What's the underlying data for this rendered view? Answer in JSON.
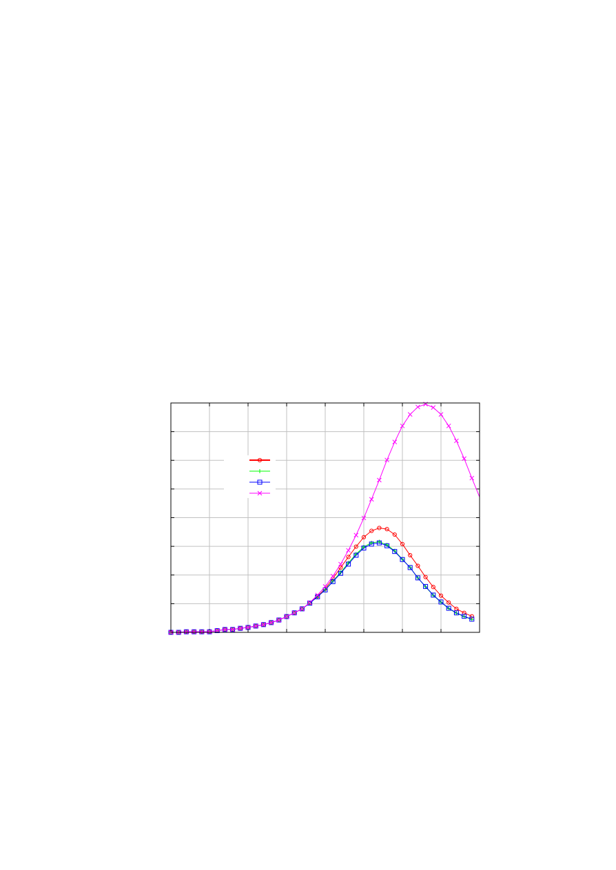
{
  "chart_data": {
    "type": "line",
    "title": "",
    "xlabel": "",
    "ylabel": "",
    "xlim": [
      0,
      8
    ],
    "ylim": [
      0,
      8
    ],
    "grid": true,
    "tick_labels_shown": false,
    "legend_placement": "upper-left-center",
    "x": [
      0,
      0.2,
      0.4,
      0.6,
      0.8,
      1.0,
      1.2,
      1.4,
      1.6,
      1.8,
      2.0,
      2.2,
      2.4,
      2.6,
      2.8,
      3.0,
      3.2,
      3.4,
      3.6,
      3.8,
      4.0,
      4.2,
      4.4,
      4.6,
      4.8,
      5.0,
      5.2,
      5.4,
      5.6,
      5.8,
      6.0,
      6.2,
      6.4,
      6.6,
      6.8,
      7.0,
      7.2,
      7.4,
      7.6,
      7.8
    ],
    "series": [
      {
        "color": "#ff0000",
        "marker": "circle-dot",
        "values": [
          0,
          0,
          0.02,
          0.02,
          0.02,
          0.02,
          0.06,
          0.1,
          0.1,
          0.14,
          0.17,
          0.22,
          0.27,
          0.34,
          0.43,
          0.55,
          0.68,
          0.82,
          1.02,
          1.26,
          1.52,
          1.88,
          2.26,
          2.63,
          2.99,
          3.32,
          3.54,
          3.64,
          3.6,
          3.41,
          3.08,
          2.69,
          2.32,
          1.93,
          1.58,
          1.28,
          1.04,
          0.82,
          0.68,
          0.56
        ]
      },
      {
        "color": "#00ff00",
        "marker": "plus",
        "values": [
          0,
          0,
          0.02,
          0.02,
          0.02,
          0.02,
          0.06,
          0.1,
          0.1,
          0.14,
          0.17,
          0.22,
          0.27,
          0.34,
          0.43,
          0.55,
          0.68,
          0.82,
          1.02,
          1.24,
          1.49,
          1.79,
          2.09,
          2.42,
          2.73,
          2.98,
          3.12,
          3.16,
          3.05,
          2.84,
          2.55,
          2.26,
          1.9,
          1.59,
          1.29,
          1.05,
          0.83,
          0.67,
          0.55,
          0.45
        ]
      },
      {
        "color": "#0000ff",
        "marker": "square",
        "values": [
          0,
          0,
          0.02,
          0.02,
          0.02,
          0.02,
          0.06,
          0.1,
          0.1,
          0.14,
          0.17,
          0.22,
          0.27,
          0.34,
          0.43,
          0.55,
          0.68,
          0.82,
          1.02,
          1.24,
          1.48,
          1.77,
          2.06,
          2.38,
          2.69,
          2.94,
          3.08,
          3.12,
          3.02,
          2.82,
          2.54,
          2.26,
          1.9,
          1.6,
          1.3,
          1.06,
          0.84,
          0.68,
          0.56,
          0.46
        ]
      },
      {
        "color": "#ff00ff",
        "marker": "cross",
        "line_extends_to": [
          8.0,
          4.72
        ],
        "values": [
          0,
          0,
          0.02,
          0.02,
          0.02,
          0.02,
          0.06,
          0.1,
          0.1,
          0.14,
          0.17,
          0.22,
          0.27,
          0.34,
          0.43,
          0.55,
          0.68,
          0.82,
          1.04,
          1.3,
          1.6,
          1.96,
          2.38,
          2.86,
          3.39,
          3.99,
          4.64,
          5.31,
          6.01,
          6.64,
          7.2,
          7.6,
          7.86,
          7.96,
          7.84,
          7.6,
          7.2,
          6.68,
          6.06,
          5.38
        ]
      }
    ]
  }
}
